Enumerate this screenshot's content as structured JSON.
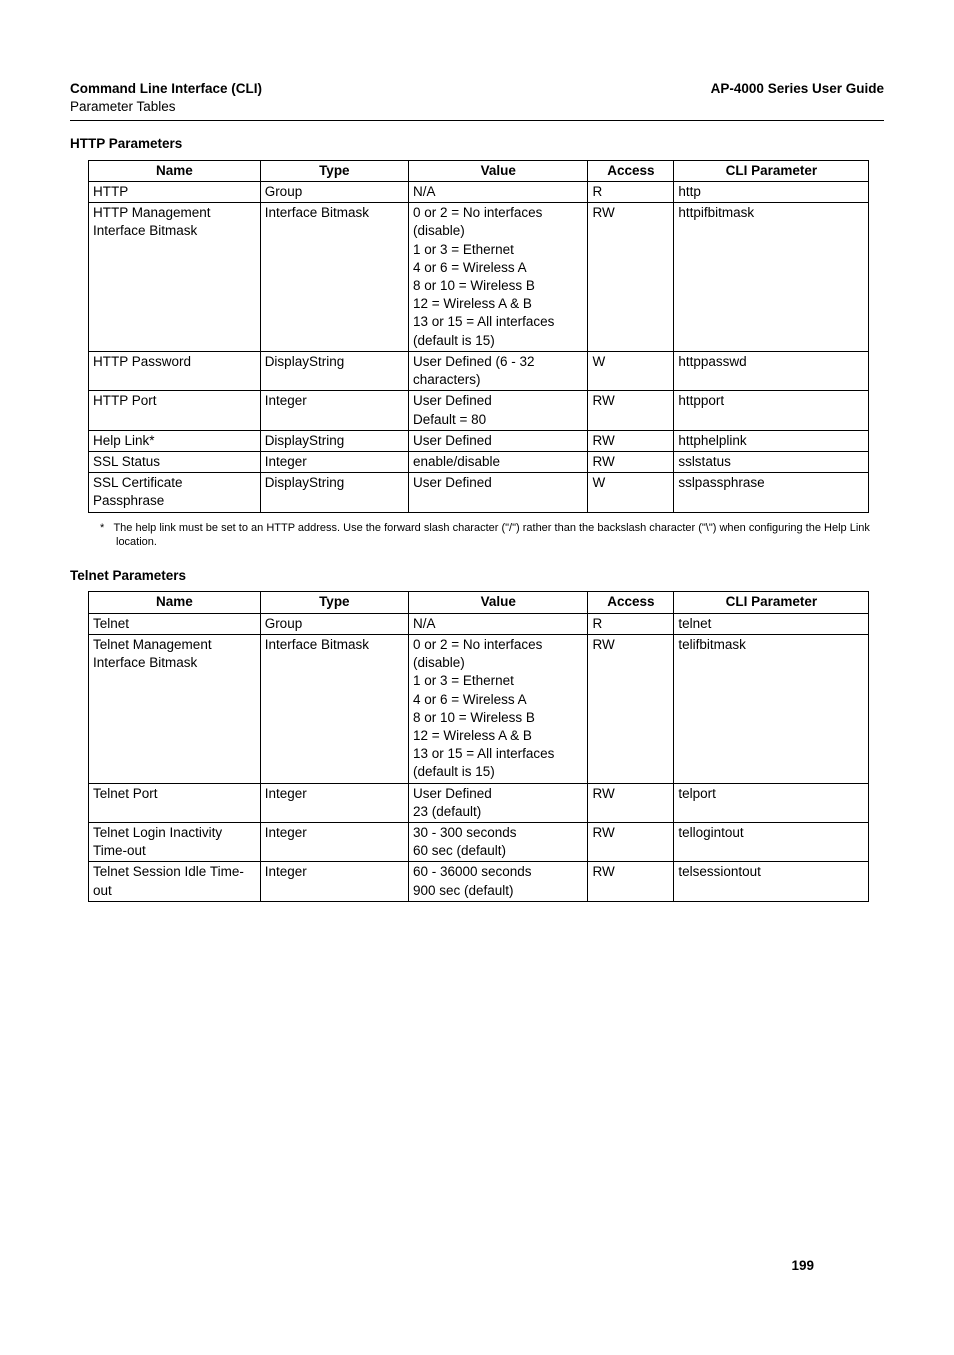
{
  "header": {
    "left_bold": "Command Line Interface (CLI)",
    "left_sub": "Parameter Tables",
    "right": "AP-4000 Series User Guide"
  },
  "http_section": {
    "title": "HTTP Parameters",
    "columns": [
      "Name",
      "Type",
      "Value",
      "Access",
      "CLI Parameter"
    ],
    "col_widths": [
      "22%",
      "19%",
      "23%",
      "11%",
      "25%"
    ],
    "rows": [
      {
        "name": "HTTP",
        "type": "Group",
        "value": [
          "N/A"
        ],
        "access": "R",
        "cli": "http"
      },
      {
        "name": "HTTP Management Interface Bitmask",
        "type": "Interface Bitmask",
        "value": [
          "0 or 2 = No interfaces (disable)",
          "1 or 3 = Ethernet",
          "4 or 6 = Wireless A",
          "8 or 10 = Wireless B",
          "12 = Wireless A & B",
          "13 or 15 = All interfaces (default is 15)"
        ],
        "access": "RW",
        "cli": "httpifbitmask"
      },
      {
        "name": "HTTP Password",
        "type": "DisplayString",
        "value": [
          "User Defined (6 - 32 characters)"
        ],
        "access": "W",
        "cli": "httppasswd"
      },
      {
        "name": "HTTP Port",
        "type": "Integer",
        "value": [
          "User Defined",
          "Default = 80"
        ],
        "access": "RW",
        "cli": "httpport"
      },
      {
        "name": "Help Link*",
        "type": "DisplayString",
        "value": [
          "User Defined"
        ],
        "access": "RW",
        "cli": "httphelplink"
      },
      {
        "name": "SSL Status",
        "type": "Integer",
        "value": [
          "enable/disable"
        ],
        "access": "RW",
        "cli": "sslstatus"
      },
      {
        "name": "SSL Certificate Passphrase",
        "type": "DisplayString",
        "value": [
          "User Defined"
        ],
        "access": "W",
        "cli": "sslpassphrase"
      }
    ],
    "footnote_marker": "*",
    "footnote": "The help link must be set to an HTTP address. Use the forward slash character (\"/\") rather than the backslash character (\"\\\") when configuring the Help Link location."
  },
  "telnet_section": {
    "title": "Telnet Parameters",
    "columns": [
      "Name",
      "Type",
      "Value",
      "Access",
      "CLI Parameter"
    ],
    "col_widths": [
      "22%",
      "19%",
      "23%",
      "11%",
      "25%"
    ],
    "rows": [
      {
        "name": "Telnet",
        "type": "Group",
        "value": [
          "N/A"
        ],
        "access": "R",
        "cli": "telnet"
      },
      {
        "name": "Telnet Management Interface Bitmask",
        "type": "Interface Bitmask",
        "value": [
          "0 or 2 = No interfaces (disable)",
          "1 or 3 = Ethernet",
          "4 or 6 = Wireless A",
          "8 or 10 = Wireless B",
          "12 = Wireless A & B",
          "13 or 15 = All interfaces (default is 15)"
        ],
        "access": "RW",
        "cli": "telifbitmask"
      },
      {
        "name": "Telnet Port",
        "type": "Integer",
        "value": [
          "User Defined",
          "23 (default)"
        ],
        "access": "RW",
        "cli": "telport"
      },
      {
        "name": "Telnet Login Inactivity Time-out",
        "type": "Integer",
        "value": [
          "30 - 300 seconds",
          "60 sec (default)"
        ],
        "access": "RW",
        "cli": "tellogintout"
      },
      {
        "name": "Telnet Session Idle Time-out",
        "type": "Integer",
        "value": [
          "60 - 36000 seconds",
          "900 sec (default)"
        ],
        "access": "RW",
        "cli": "telsessiontout"
      }
    ]
  },
  "page_number": "199"
}
